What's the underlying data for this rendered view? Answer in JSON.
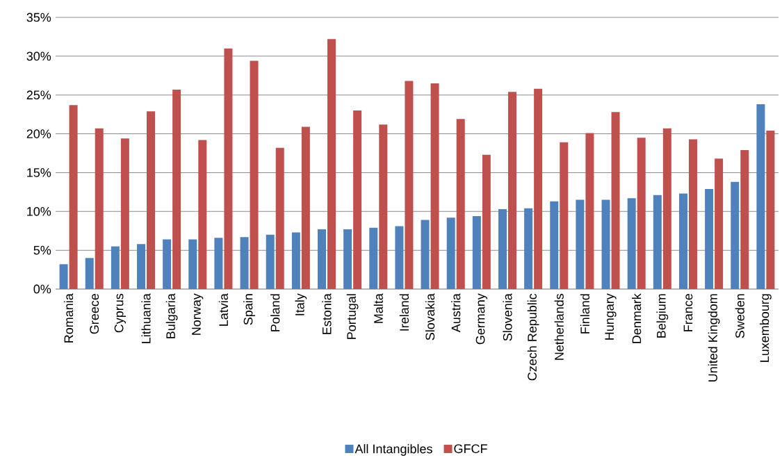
{
  "chart_data": {
    "type": "bar",
    "categories": [
      "Romania",
      "Greece",
      "Cyprus",
      "Lithuania",
      "Bulgaria",
      "Norway",
      "Latvia",
      "Spain",
      "Poland",
      "Italy",
      "Estonia",
      "Portugal",
      "Malta",
      "Ireland",
      "Slovakia",
      "Austria",
      "Germany",
      "Slovenia",
      "Czech Republic",
      "Netherlands",
      "Finland",
      "Hungary",
      "Denmark",
      "Belgium",
      "France",
      "United Kingdom",
      "Sweden",
      "Luxembourg"
    ],
    "series": [
      {
        "name": "All Intangibles",
        "color": "#4f81bd",
        "values": [
          3.2,
          4.0,
          5.5,
          5.8,
          6.4,
          6.4,
          6.6,
          6.7,
          7.0,
          7.3,
          7.7,
          7.7,
          7.9,
          8.1,
          8.9,
          9.2,
          9.4,
          10.3,
          10.4,
          11.3,
          11.5,
          11.5,
          11.7,
          12.1,
          12.3,
          12.9,
          13.8,
          23.8
        ]
      },
      {
        "name": "GFCF",
        "color": "#c0504d",
        "values": [
          23.7,
          20.7,
          19.4,
          22.9,
          25.7,
          19.2,
          31.0,
          29.4,
          18.2,
          20.9,
          32.2,
          23.0,
          21.2,
          26.8,
          26.5,
          21.9,
          17.3,
          25.4,
          25.8,
          18.9,
          20.1,
          22.8,
          19.5,
          20.7,
          19.3,
          16.8,
          17.9,
          20.4
        ]
      }
    ],
    "ylim": [
      0,
      35
    ],
    "yticks": [
      {
        "value": 0,
        "label": "0%"
      },
      {
        "value": 5,
        "label": "5%"
      },
      {
        "value": 10,
        "label": "10%"
      },
      {
        "value": 15,
        "label": "15%"
      },
      {
        "value": 20,
        "label": "20%"
      },
      {
        "value": 25,
        "label": "25%"
      },
      {
        "value": 30,
        "label": "30%"
      },
      {
        "value": 35,
        "label": "35%"
      }
    ],
    "grid": "y",
    "legend": "bottom"
  }
}
